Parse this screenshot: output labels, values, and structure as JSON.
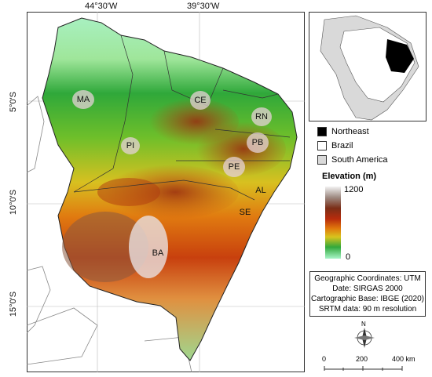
{
  "coordinates": {
    "top": [
      "44°30'W",
      "39°30'W"
    ],
    "left": [
      "5°0'S",
      "10°0'S",
      "15°0'S"
    ]
  },
  "states": [
    {
      "code": "MA"
    },
    {
      "code": "CE"
    },
    {
      "code": "RN"
    },
    {
      "code": "PB"
    },
    {
      "code": "PI"
    },
    {
      "code": "PE"
    },
    {
      "code": "AL"
    },
    {
      "code": "SE"
    },
    {
      "code": "BA"
    }
  ],
  "legend": {
    "items": [
      {
        "label": "Northeast",
        "color": "#000000"
      },
      {
        "label": "Brazil",
        "color": "#ffffff"
      },
      {
        "label": "South America",
        "color": "#d9d9d9"
      }
    ],
    "elevation_title": "Elevation (m)",
    "elevation_max": "1200",
    "elevation_min": "0"
  },
  "info": {
    "line1": "Geographic Coordinates: UTM",
    "line2": "Date: SIRGAS 2000",
    "line3": "Cartographic Base: IBGE (2020)",
    "line4": "SRTM data: 90 m resolution"
  },
  "north_arrow": {
    "label": "N"
  },
  "scale": {
    "labels": [
      "0",
      "200",
      "400 km"
    ]
  }
}
